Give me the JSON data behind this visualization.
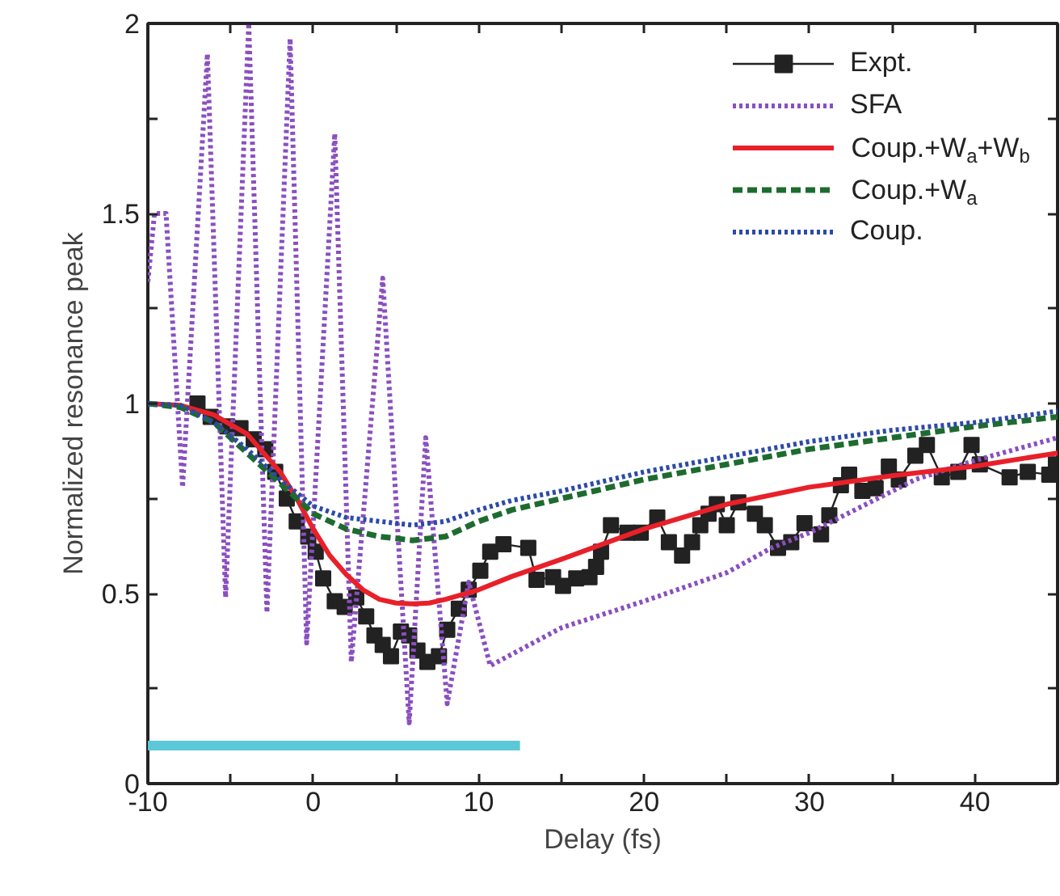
{
  "chart_data": {
    "type": "line",
    "xlabel": "Delay (fs)",
    "ylabel": "Normalized resonance peak",
    "xlim": [
      -10,
      45
    ],
    "ylim": [
      0,
      2
    ],
    "xticks": [
      -10,
      {
        "value": -5,
        "label": null
      },
      0,
      {
        "value": 5,
        "label": null
      },
      10,
      {
        "value": 15,
        "label": null
      },
      20,
      {
        "value": 25,
        "label": null
      },
      30,
      {
        "value": 35,
        "label": null
      },
      40
    ],
    "yticks": [
      0,
      {
        "value": 0.25,
        "label": null
      },
      0.5,
      {
        "value": 0.75,
        "label": null
      },
      1,
      {
        "value": 1.25,
        "label": null
      },
      1.5,
      {
        "value": 1.75,
        "label": null
      },
      2
    ],
    "grid": false,
    "legend": "top right",
    "series": [
      {
        "name": "Expt.",
        "color": "#222222",
        "line_style": "solid",
        "marker": "square",
        "x": [
          -7.0,
          -6.2,
          -5.2,
          -4.4,
          -3.6,
          -2.9,
          -2.3,
          -1.6,
          -1.0,
          -0.3,
          0.15,
          0.6,
          1.3,
          1.9,
          2.6,
          3.2,
          3.7,
          4.2,
          4.7,
          5.3,
          5.8,
          6.3,
          6.9,
          7.6,
          8.1,
          8.8,
          9.4,
          10.1,
          10.7,
          11.5,
          13.0,
          13.5,
          14.5,
          15.1,
          15.9,
          16.7,
          17.1,
          17.4,
          18.0,
          19.0,
          19.8,
          20.8,
          21.5,
          22.3,
          22.9,
          23.4,
          23.9,
          24.4,
          25.0,
          25.7,
          26.7,
          27.3,
          28.1,
          28.9,
          29.7,
          30.7,
          31.2,
          31.9,
          32.4,
          33.2,
          34.0,
          34.8,
          35.4,
          36.4,
          37.1,
          38.0,
          39.0,
          39.8,
          40.3,
          42.1,
          43.2,
          44.5,
          44.9
        ],
        "values": [
          1.0,
          0.965,
          0.94,
          0.935,
          0.906,
          0.88,
          0.82,
          0.75,
          0.69,
          0.65,
          0.61,
          0.54,
          0.48,
          0.465,
          0.49,
          0.44,
          0.39,
          0.365,
          0.335,
          0.4,
          0.39,
          0.35,
          0.32,
          0.335,
          0.405,
          0.46,
          0.51,
          0.56,
          0.61,
          0.63,
          0.62,
          0.536,
          0.543,
          0.52,
          0.54,
          0.543,
          0.57,
          0.61,
          0.68,
          0.66,
          0.66,
          0.7,
          0.635,
          0.6,
          0.635,
          0.68,
          0.71,
          0.735,
          0.68,
          0.74,
          0.71,
          0.68,
          0.62,
          0.635,
          0.685,
          0.656,
          0.706,
          0.785,
          0.813,
          0.77,
          0.777,
          0.834,
          0.8,
          0.863,
          0.891,
          0.806,
          0.82,
          0.891,
          0.84,
          0.806,
          0.82,
          0.813,
          0.84
        ]
      },
      {
        "name": "SFA",
        "color": "#8a4fbf",
        "line_style": "dotted",
        "marker": "none",
        "x": [
          -10,
          -9.6,
          -8.9,
          -7.9,
          -6.4,
          -5.3,
          -3.9,
          -2.8,
          -1.4,
          -0.4,
          1.3,
          2.3,
          4.2,
          5.8,
          6.8,
          8.1,
          9.4,
          10.7,
          15,
          20,
          25,
          27.7,
          30,
          36.4,
          40,
          45
        ],
        "values": [
          1.32,
          1.5,
          1.5,
          0.78,
          1.92,
          0.49,
          2.0,
          0.45,
          1.96,
          0.37,
          1.71,
          0.32,
          1.33,
          0.16,
          0.91,
          0.21,
          0.53,
          0.31,
          0.41,
          0.48,
          0.555,
          0.62,
          0.66,
          0.8,
          0.85,
          0.91
        ]
      },
      {
        "name": "Coup.+W$_{a}$+W$_{b}$",
        "color": "#e8202a",
        "line_style": "solid",
        "marker": "none",
        "x": [
          -10,
          -8,
          -6,
          -4,
          -2,
          -1,
          0,
          1,
          2,
          3,
          4,
          5,
          6,
          7,
          8,
          10,
          12,
          15,
          20,
          25,
          30,
          35,
          40,
          45
        ],
        "values": [
          1.0,
          0.995,
          0.97,
          0.92,
          0.82,
          0.75,
          0.67,
          0.6,
          0.55,
          0.51,
          0.485,
          0.475,
          0.473,
          0.475,
          0.485,
          0.51,
          0.545,
          0.59,
          0.67,
          0.735,
          0.78,
          0.81,
          0.835,
          0.87
        ]
      },
      {
        "name": "Coup.+W$_{a}$",
        "color": "#1e6b30",
        "line_style": "dashed",
        "marker": "none",
        "x": [
          -10,
          -8,
          -6,
          -4,
          -2,
          0,
          2,
          4,
          6,
          8,
          10,
          12,
          15,
          20,
          25,
          30,
          35,
          40,
          45
        ],
        "values": [
          1.0,
          0.99,
          0.95,
          0.87,
          0.79,
          0.71,
          0.67,
          0.65,
          0.64,
          0.65,
          0.69,
          0.72,
          0.75,
          0.8,
          0.84,
          0.88,
          0.91,
          0.94,
          0.965
        ]
      },
      {
        "name": "Coup.",
        "color": "#2c4aa8",
        "line_style": "dotted",
        "marker": "none",
        "x": [
          -10,
          -8,
          -6,
          -4,
          -2,
          0,
          2,
          4,
          6,
          8,
          10,
          12,
          15,
          20,
          25,
          30,
          35,
          40,
          45
        ],
        "values": [
          1.0,
          0.995,
          0.95,
          0.88,
          0.8,
          0.73,
          0.7,
          0.69,
          0.68,
          0.69,
          0.72,
          0.745,
          0.77,
          0.82,
          0.86,
          0.9,
          0.93,
          0.95,
          0.98
        ]
      },
      {
        "color": "#5bc8d8",
        "line_style": "solid",
        "marker": "none",
        "x": [
          -10,
          12.5
        ],
        "values": [
          0.1,
          0.1
        ]
      }
    ]
  }
}
